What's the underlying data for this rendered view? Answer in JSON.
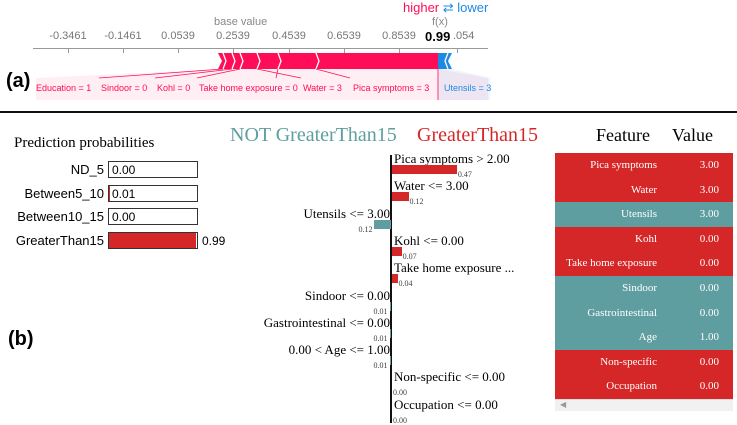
{
  "panel_a": {
    "label": "(a)",
    "legend_higher": "higher",
    "legend_arrows": "⇄",
    "legend_lower": "lower",
    "base_value_label": "base value",
    "fx_label": "f(x)",
    "fx_value": "0.99",
    "ticks": [
      "-0.3461",
      "-0.1461",
      "0.0539",
      "0.2539",
      "0.4539",
      "0.6539",
      "0.8539",
      ".054"
    ],
    "features": [
      {
        "text": "Education = 1",
        "dir": "higher"
      },
      {
        "text": "Sindoor = 0",
        "dir": "higher"
      },
      {
        "text": "Kohl = 0",
        "dir": "higher"
      },
      {
        "text": "Take home exposure = 0",
        "dir": "higher"
      },
      {
        "text": "Water = 3",
        "dir": "higher"
      },
      {
        "text": "Pica symptoms = 3",
        "dir": "higher"
      },
      {
        "text": "Utensils = 3",
        "dir": "lower"
      }
    ],
    "colors": {
      "higher": "#ff0d57",
      "lower": "#1e88e5"
    }
  },
  "panel_b": {
    "label": "(b)",
    "probabilities": {
      "title": "Prediction probabilities",
      "items": [
        {
          "label": "ND_5",
          "value": "0.00",
          "frac": 0.0
        },
        {
          "label": "Between5_10",
          "value": "0.01",
          "frac": 0.01
        },
        {
          "label": "Between10_15",
          "value": "0.00",
          "frac": 0.0
        },
        {
          "label": "GreaterThan15",
          "value": "0.99",
          "frac": 0.99
        }
      ]
    },
    "table": {
      "header_feature": "Feature",
      "header_value": "Value",
      "rows": [
        {
          "feature": "Pica symptoms",
          "value": "3.00",
          "color": "#d62728"
        },
        {
          "feature": "Water",
          "value": "3.00",
          "color": "#d62728"
        },
        {
          "feature": "Utensils",
          "value": "3.00",
          "color": "#5f9ea0"
        },
        {
          "feature": "Kohl",
          "value": "0.00",
          "color": "#d62728"
        },
        {
          "feature": "Take home exposure",
          "value": "0.00",
          "color": "#d62728"
        },
        {
          "feature": "Sindoor",
          "value": "0.00",
          "color": "#5f9ea0"
        },
        {
          "feature": "Gastrointestinal",
          "value": "0.00",
          "color": "#5f9ea0"
        },
        {
          "feature": "Age",
          "value": "1.00",
          "color": "#5f9ea0"
        },
        {
          "feature": "Non-specific",
          "value": "0.00",
          "color": "#d62728"
        },
        {
          "feature": "Occupation",
          "value": "0.00",
          "color": "#d62728"
        }
      ]
    }
  },
  "chart_data": {
    "type": "bar",
    "title_negative": "NOT GreaterThan15",
    "title_positive": "GreaterThan15",
    "colors": {
      "positive": "#d62728",
      "negative": "#5f9ea0"
    },
    "items": [
      {
        "label": "Pica symptoms > 2.00",
        "value": 0.47,
        "text": "0.47",
        "side": "positive"
      },
      {
        "label": "Water <= 3.00",
        "value": 0.12,
        "text": "0.12",
        "side": "positive"
      },
      {
        "label": "Utensils <= 3.00",
        "value": 0.12,
        "text": "0.12",
        "side": "negative"
      },
      {
        "label": "Kohl <= 0.00",
        "value": 0.07,
        "text": "0.07",
        "side": "positive"
      },
      {
        "label": "Take home exposure ...",
        "value": 0.04,
        "text": "0.04",
        "side": "positive"
      },
      {
        "label": "Sindoor <= 0.00",
        "value": 0.01,
        "text": "0.01",
        "side": "negative"
      },
      {
        "label": "Gastrointestinal <= 0.00",
        "value": 0.01,
        "text": "0.01",
        "side": "negative"
      },
      {
        "label": "0.00 < Age <= 1.00",
        "value": 0.01,
        "text": "0.01",
        "side": "negative"
      },
      {
        "label": "Non-specific <= 0.00",
        "value": 0.0,
        "text": "0.00",
        "side": "positive"
      },
      {
        "label": "Occupation <= 0.00",
        "value": 0.0,
        "text": "0.00",
        "side": "positive"
      }
    ]
  }
}
